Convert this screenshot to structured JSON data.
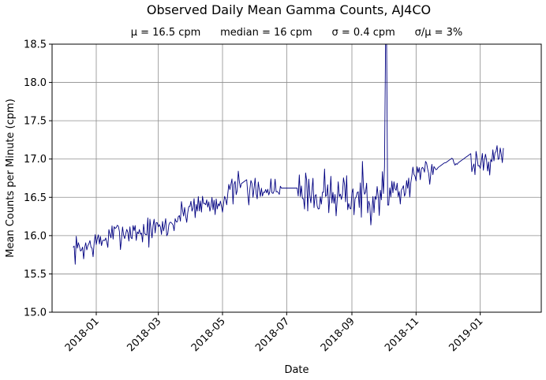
{
  "chart_data": {
    "type": "line",
    "title": "Observed Daily Mean Gamma Counts, AJ4CO",
    "subtitle": "μ = 16.5 cpm      median = 16 cpm      σ = 0.4 cpm      σ/μ = 3%",
    "xlabel": "Date",
    "ylabel": "Mean Counts per Minute (cpm)",
    "ylim": [
      15.0,
      18.5
    ],
    "xlim": [
      "2017-11-20",
      "2019-02-28"
    ],
    "x_ticks": [
      "2018-01-01",
      "2018-03-01",
      "2018-05-01",
      "2018-07-01",
      "2018-09-01",
      "2018-11-01",
      "2019-01-01"
    ],
    "x_tick_labels": [
      "2018-01",
      "2018-03",
      "2018-05",
      "2018-07",
      "2018-09",
      "2018-11",
      "2019-01"
    ],
    "y_ticks": [
      15.0,
      15.5,
      16.0,
      16.5,
      17.0,
      17.5,
      18.0,
      18.5
    ],
    "y_tick_labels": [
      "15.0",
      "15.5",
      "16.0",
      "16.5",
      "17.0",
      "17.5",
      "18.0",
      "18.5"
    ],
    "grid": true,
    "line_color": "#000080",
    "series": [
      {
        "start": "2017-12-10",
        "end": "2018-05-18",
        "anchors": [
          15.8,
          15.9,
          16.05,
          16.05,
          16.12,
          16.4,
          16.42,
          16.65
        ],
        "noise": 0.09,
        "seed": 7
      },
      {
        "start": "2018-05-19",
        "end": "2018-06-05",
        "values": [
          16.68,
          16.69,
          16.7,
          16.71,
          16.72,
          16.73,
          16.55,
          16.4,
          16.6,
          16.72,
          16.68,
          16.5,
          16.62,
          16.75,
          16.55,
          16.48,
          16.7,
          16.6
        ]
      },
      {
        "start": "2018-06-06",
        "end": "2018-06-25",
        "anchors": [
          16.6,
          16.6,
          16.62
        ],
        "noise": 0.07,
        "seed": 11
      },
      {
        "start": "2018-06-26",
        "end": "2018-07-11",
        "values": [
          16.62,
          16.62,
          16.62,
          16.62,
          16.62,
          16.62,
          16.62,
          16.62,
          16.62,
          16.62,
          16.62,
          16.62,
          16.62,
          16.62,
          16.62,
          16.62
        ]
      },
      {
        "start": "2018-07-12",
        "end": "2018-09-30",
        "anchors": [
          16.62,
          16.55,
          16.48,
          16.52,
          16.6
        ],
        "noise": 0.16,
        "seed": 23
      },
      {
        "start": "2018-10-01",
        "end": "2018-10-05",
        "values": [
          16.55,
          16.9,
          18.55,
          18.55,
          16.4
        ]
      },
      {
        "start": "2018-10-06",
        "end": "2018-11-18",
        "anchors": [
          16.6,
          16.55,
          16.7,
          16.85,
          16.9
        ],
        "noise": 0.09,
        "seed": 31
      },
      {
        "start": "2018-11-19",
        "end": "2018-12-23",
        "values": [
          16.88,
          16.86,
          16.87,
          16.89,
          16.9,
          16.91,
          16.92,
          16.93,
          16.94,
          16.95,
          16.95,
          16.96,
          16.97,
          16.98,
          16.99,
          17.0,
          17.01,
          17.0,
          16.95,
          16.92,
          16.94,
          16.93,
          16.95,
          16.96,
          16.97,
          16.98,
          16.99,
          17.0,
          17.01,
          17.02,
          17.03,
          17.04,
          17.05,
          17.06,
          17.07
        ]
      },
      {
        "start": "2018-12-24",
        "end": "2019-01-23",
        "anchors": [
          16.98,
          16.95,
          17.0,
          17.05,
          17.0
        ],
        "noise": 0.09,
        "seed": 43
      }
    ]
  }
}
